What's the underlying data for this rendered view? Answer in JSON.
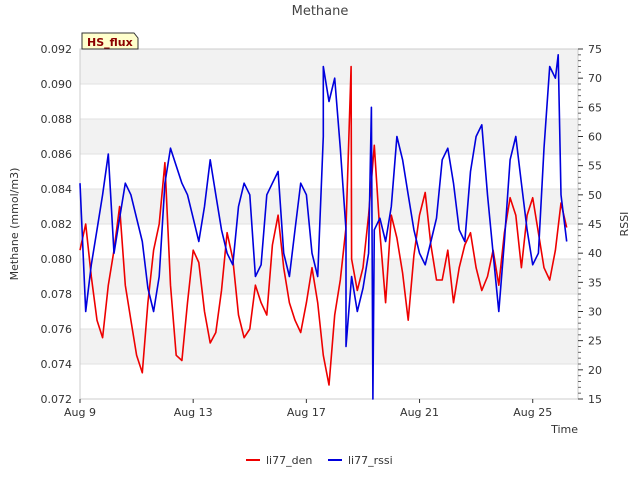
{
  "chart_data": {
    "type": "line",
    "title": "Methane",
    "badge": "HS_flux",
    "xlabel": "Time",
    "ylabel_left": "Methane (mmol/m3)",
    "ylabel_right": "RSSI",
    "xlim_days": [
      0,
      17.6
    ],
    "ylim_left": [
      0.072,
      0.092
    ],
    "ylim_right": [
      15,
      75
    ],
    "x_ticks": [
      {
        "day": 0,
        "label": "Aug 9"
      },
      {
        "day": 4,
        "label": "Aug 13"
      },
      {
        "day": 8,
        "label": "Aug 17"
      },
      {
        "day": 12,
        "label": "Aug 21"
      },
      {
        "day": 16,
        "label": "Aug 25"
      }
    ],
    "y_ticks_left": [
      "0.072",
      "0.074",
      "0.076",
      "0.078",
      "0.080",
      "0.082",
      "0.084",
      "0.086",
      "0.088",
      "0.090",
      "0.092"
    ],
    "y_ticks_right": [
      "15",
      "20",
      "25",
      "30",
      "35",
      "40",
      "45",
      "50",
      "55",
      "60",
      "65",
      "70",
      "75"
    ],
    "legend_position": "bottom-center",
    "series": [
      {
        "name": "li77_den",
        "color": "#ee0000",
        "axis": "left",
        "x": [
          0.0,
          0.2,
          0.4,
          0.6,
          0.8,
          1.0,
          1.2,
          1.4,
          1.6,
          1.8,
          2.0,
          2.2,
          2.4,
          2.6,
          2.8,
          3.0,
          3.2,
          3.4,
          3.6,
          3.8,
          4.0,
          4.2,
          4.4,
          4.6,
          4.8,
          5.0,
          5.2,
          5.4,
          5.6,
          5.8,
          6.0,
          6.2,
          6.4,
          6.6,
          6.8,
          7.0,
          7.2,
          7.4,
          7.6,
          7.8,
          8.0,
          8.2,
          8.4,
          8.6,
          8.8,
          9.0,
          9.2,
          9.4,
          9.6,
          9.8,
          10.0,
          10.2,
          10.4,
          10.6,
          10.8,
          11.0,
          11.2,
          11.4,
          11.6,
          11.8,
          12.0,
          12.2,
          12.4,
          12.6,
          12.8,
          13.0,
          13.2,
          13.4,
          13.6,
          13.8,
          14.0,
          14.2,
          14.4,
          14.6,
          14.8,
          15.0,
          15.2,
          15.4,
          15.6,
          15.8,
          16.0,
          16.2,
          16.4,
          16.6,
          16.8,
          17.0,
          17.2
        ],
        "values": [
          0.0805,
          0.082,
          0.079,
          0.0765,
          0.0755,
          0.0785,
          0.0805,
          0.083,
          0.0785,
          0.0765,
          0.0745,
          0.0735,
          0.0775,
          0.0805,
          0.082,
          0.0855,
          0.0785,
          0.0745,
          0.0742,
          0.0775,
          0.0805,
          0.0798,
          0.077,
          0.0752,
          0.0758,
          0.0782,
          0.0815,
          0.08,
          0.0768,
          0.0755,
          0.076,
          0.0785,
          0.0775,
          0.0768,
          0.0808,
          0.0825,
          0.0795,
          0.0775,
          0.0765,
          0.0758,
          0.0775,
          0.0795,
          0.0775,
          0.0745,
          0.0728,
          0.0768,
          0.0788,
          0.0818,
          0.08,
          0.0782,
          0.0795,
          0.0825,
          0.0865,
          0.0815,
          0.0775,
          0.0825,
          0.0812,
          0.0792,
          0.0765,
          0.0802,
          0.0825,
          0.0838,
          0.0808,
          0.0788,
          0.0788,
          0.0805,
          0.0775,
          0.0795,
          0.0808,
          0.0815,
          0.0795,
          0.0782,
          0.079,
          0.0805,
          0.0785,
          0.0815,
          0.0835,
          0.0825,
          0.0795,
          0.0825,
          0.0835,
          0.0815,
          0.0795,
          0.0788,
          0.0805,
          0.0832,
          0.0818
        ],
        "events": [
          {
            "x": 9.58,
            "y": 0.091
          }
        ]
      },
      {
        "name": "li77_rssi",
        "color": "#0000dd",
        "axis": "right",
        "x": [
          0.0,
          0.2,
          0.4,
          0.6,
          0.8,
          1.0,
          1.2,
          1.4,
          1.6,
          1.8,
          2.0,
          2.2,
          2.4,
          2.6,
          2.8,
          3.0,
          3.2,
          3.4,
          3.6,
          3.8,
          4.0,
          4.2,
          4.4,
          4.6,
          4.8,
          5.0,
          5.2,
          5.4,
          5.6,
          5.8,
          6.0,
          6.2,
          6.4,
          6.6,
          6.8,
          7.0,
          7.2,
          7.4,
          7.6,
          7.8,
          8.0,
          8.2,
          8.4,
          8.6,
          8.8,
          9.0,
          9.2,
          9.4,
          9.6,
          9.8,
          10.0,
          10.2,
          10.4,
          10.6,
          10.8,
          11.0,
          11.2,
          11.4,
          11.6,
          11.8,
          12.0,
          12.2,
          12.4,
          12.6,
          12.8,
          13.0,
          13.2,
          13.4,
          13.6,
          13.8,
          14.0,
          14.2,
          14.4,
          14.6,
          14.8,
          15.0,
          15.2,
          15.4,
          15.6,
          15.8,
          16.0,
          16.2,
          16.4,
          16.6,
          16.8,
          17.0,
          17.2
        ],
        "values": [
          52,
          30,
          38,
          44,
          50,
          57,
          40,
          46,
          52,
          50,
          46,
          42,
          34,
          30,
          36,
          52,
          58,
          55,
          52,
          50,
          46,
          42,
          48,
          56,
          50,
          44,
          40,
          38,
          48,
          52,
          50,
          36,
          38,
          50,
          52,
          54,
          40,
          36,
          44,
          52,
          50,
          40,
          36,
          60,
          66,
          70,
          58,
          44,
          36,
          30,
          34,
          40,
          44,
          46,
          42,
          48,
          60,
          56,
          50,
          44,
          40,
          38,
          42,
          46,
          56,
          58,
          52,
          44,
          42,
          54,
          60,
          62,
          50,
          40,
          30,
          42,
          56,
          60,
          52,
          44,
          38,
          40,
          58,
          72,
          70,
          50,
          42
        ],
        "events": [
          {
            "x": 8.6,
            "y": 72
          },
          {
            "x": 10.3,
            "y": 65
          },
          {
            "x": 10.35,
            "y": 15
          },
          {
            "x": 9.4,
            "y": 24
          },
          {
            "x": 16.9,
            "y": 74
          }
        ]
      }
    ]
  }
}
